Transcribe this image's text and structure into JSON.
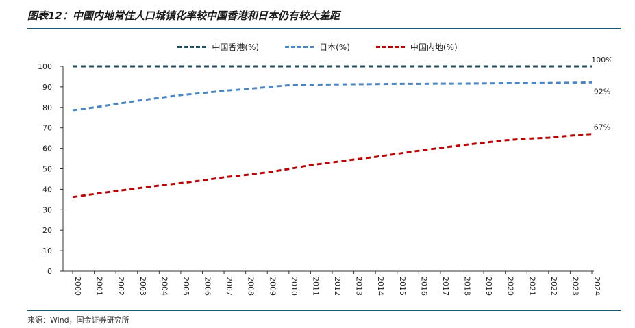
{
  "title": "图表12：中国内地常住人口城镇化率较中国香港和日本仍有较大差距",
  "source": "来源：Wind，国金证券研究所",
  "chart_data": {
    "type": "line",
    "x": [
      "2000",
      "2001",
      "2002",
      "2003",
      "2004",
      "2005",
      "2006",
      "2007",
      "2008",
      "2009",
      "2010",
      "2011",
      "2012",
      "2013",
      "2014",
      "2015",
      "2016",
      "2017",
      "2018",
      "2019",
      "2020",
      "2021",
      "2022",
      "2023",
      "2024"
    ],
    "ylim": [
      0,
      100
    ],
    "yticks": [
      "0",
      "10",
      "20",
      "30",
      "40",
      "50",
      "60",
      "70",
      "80",
      "90",
      "100"
    ],
    "legend_position": "top-center",
    "grid": false,
    "series": [
      {
        "name": "中国香港(%)",
        "color": "#1f4e5f",
        "values": [
          100,
          100,
          100,
          100,
          100,
          100,
          100,
          100,
          100,
          100,
          100,
          100,
          100,
          100,
          100,
          100,
          100,
          100,
          100,
          100,
          100,
          100,
          100,
          100,
          100
        ],
        "end_label": "100%"
      },
      {
        "name": "日本(%)",
        "color": "#4a86c5",
        "values": [
          78.6,
          80.0,
          81.6,
          83.2,
          84.6,
          86.0,
          87.0,
          88.1,
          88.9,
          89.9,
          90.8,
          91.1,
          91.2,
          91.3,
          91.4,
          91.5,
          91.5,
          91.6,
          91.6,
          91.7,
          91.8,
          91.8,
          91.9,
          92.0,
          92.2
        ],
        "end_label": "92%"
      },
      {
        "name": "中国内地(%)",
        "color": "#c00000",
        "values": [
          36.2,
          37.7,
          39.1,
          40.5,
          41.8,
          43.0,
          44.3,
          45.9,
          47.0,
          48.3,
          49.9,
          51.8,
          53.1,
          54.5,
          55.8,
          57.3,
          58.8,
          60.2,
          61.5,
          62.7,
          63.9,
          64.7,
          65.2,
          66.2,
          67.0
        ],
        "end_label": "67%"
      }
    ]
  }
}
